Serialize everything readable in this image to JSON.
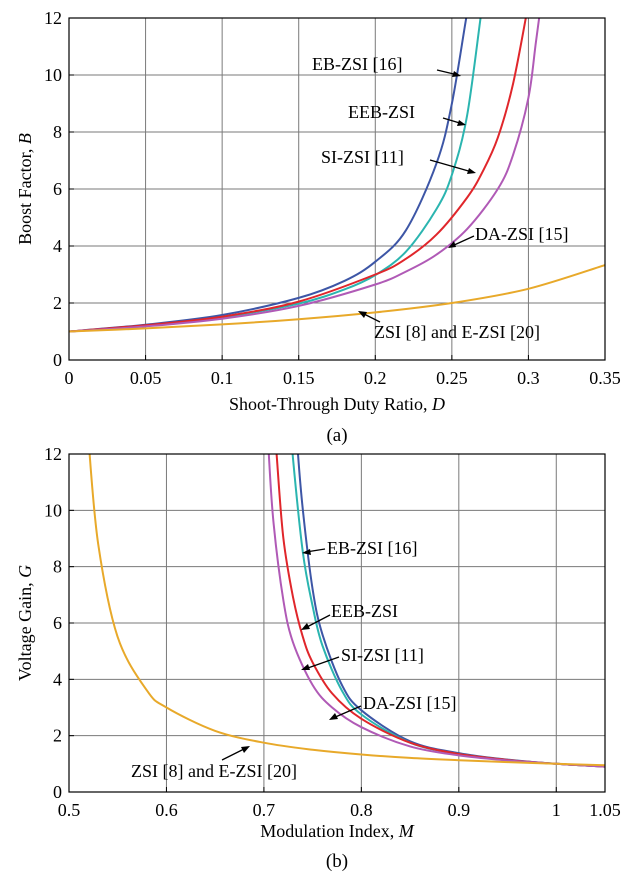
{
  "chart_data": [
    {
      "type": "line",
      "caption": "(a)",
      "xlabel": "Shoot-Through Duty Ratio, ",
      "xlabel_var": "D",
      "ylabel": "Boost Factor, ",
      "ylabel_var": "B",
      "xlim": [
        0,
        0.35
      ],
      "ylim": [
        0,
        12
      ],
      "xticks": [
        0,
        0.05,
        0.1,
        0.15,
        0.2,
        0.25,
        0.3,
        0.35
      ],
      "xtick_labels": [
        "0",
        "0.05",
        "0.1",
        "0.15",
        "0.2",
        "0.25",
        "0.3",
        "0.35"
      ],
      "yticks": [
        0,
        2,
        4,
        6,
        8,
        10,
        12
      ],
      "ytick_labels": [
        "0",
        "2",
        "4",
        "6",
        "8",
        "10",
        "12"
      ],
      "grid": true,
      "series": [
        {
          "name": "EB-ZSI [16]",
          "color": "#3d56a6",
          "x": [
            0,
            0.05,
            0.1,
            0.15,
            0.18,
            0.2,
            0.22,
            0.24,
            0.25,
            0.26,
            0.265
          ],
          "y": [
            1.0,
            1.24,
            1.58,
            2.18,
            2.78,
            3.45,
            4.55,
            6.9,
            9.0,
            12.2,
            13.6
          ]
        },
        {
          "name": "EEB-ZSI",
          "color": "#2bb5b0",
          "x": [
            0,
            0.05,
            0.1,
            0.15,
            0.18,
            0.2,
            0.22,
            0.24,
            0.25,
            0.26,
            0.27,
            0.275
          ],
          "y": [
            1.0,
            1.2,
            1.5,
            1.98,
            2.48,
            2.98,
            3.8,
            5.3,
            6.5,
            8.6,
            12.5,
            14.0
          ]
        },
        {
          "name": "SI-ZSI [11]",
          "color": "#e0262b",
          "x": [
            0,
            0.05,
            0.1,
            0.15,
            0.2,
            0.22,
            0.24,
            0.26,
            0.27,
            0.28,
            0.29,
            0.3,
            0.305
          ],
          "y": [
            1.0,
            1.22,
            1.52,
            2.05,
            3.0,
            3.55,
            4.4,
            5.7,
            6.6,
            7.8,
            9.7,
            12.5,
            14.0
          ]
        },
        {
          "name": "DA-ZSI [15]",
          "color": "#b05ab6",
          "x": [
            0,
            0.05,
            0.1,
            0.15,
            0.2,
            0.22,
            0.24,
            0.26,
            0.28,
            0.29,
            0.3,
            0.305,
            0.31
          ],
          "y": [
            1.0,
            1.18,
            1.45,
            1.9,
            2.65,
            3.1,
            3.7,
            4.6,
            6.0,
            7.2,
            9.2,
            11.2,
            13.2
          ]
        },
        {
          "name": "ZSI [8] and E-ZSI [20]",
          "color": "#e8a92a",
          "x": [
            0,
            0.05,
            0.1,
            0.15,
            0.2,
            0.25,
            0.3,
            0.35
          ],
          "y": [
            1.0,
            1.11,
            1.25,
            1.43,
            1.67,
            2.0,
            2.5,
            3.33
          ]
        }
      ]
    },
    {
      "type": "line",
      "caption": "(b)",
      "xlabel": "Modulation Index, ",
      "xlabel_var": "M",
      "ylabel": "Voltage Gain, ",
      "ylabel_var": "G",
      "xlim": [
        0.5,
        1.05
      ],
      "ylim": [
        0,
        12
      ],
      "xticks": [
        0.5,
        0.6,
        0.7,
        0.8,
        0.9,
        1,
        1.05
      ],
      "xtick_labels": [
        "0.5",
        "0.6",
        "0.7",
        "0.8",
        "0.9",
        "1",
        "1.05"
      ],
      "yticks": [
        0,
        2,
        4,
        6,
        8,
        10,
        12
      ],
      "ytick_labels": [
        "0",
        "2",
        "4",
        "6",
        "8",
        "10",
        "12"
      ],
      "grid": true,
      "series": [
        {
          "name": "EB-ZSI [16]",
          "color": "#3d56a6",
          "x": [
            0.733,
            0.735,
            0.74,
            0.75,
            0.76,
            0.78,
            0.8,
            0.85,
            0.9,
            0.95,
            1.0,
            1.05
          ],
          "y": [
            13.5,
            12.0,
            10.0,
            7.2,
            5.6,
            3.8,
            2.9,
            1.8,
            1.38,
            1.15,
            1.0,
            0.9
          ]
        },
        {
          "name": "EEB-ZSI",
          "color": "#2bb5b0",
          "x": [
            0.727,
            0.73,
            0.74,
            0.75,
            0.76,
            0.78,
            0.8,
            0.85,
            0.9,
            0.95,
            1.0,
            1.05
          ],
          "y": [
            13.5,
            11.8,
            8.5,
            6.6,
            5.2,
            3.6,
            2.75,
            1.75,
            1.35,
            1.14,
            1.0,
            0.9
          ]
        },
        {
          "name": "SI-ZSI [11]",
          "color": "#e0262b",
          "x": [
            0.71,
            0.713,
            0.72,
            0.73,
            0.74,
            0.75,
            0.77,
            0.8,
            0.85,
            0.9,
            0.95,
            1.0,
            1.05
          ],
          "y": [
            13.5,
            12.0,
            9.0,
            6.9,
            5.5,
            4.6,
            3.5,
            2.6,
            1.75,
            1.35,
            1.14,
            1.0,
            0.9
          ]
        },
        {
          "name": "DA-ZSI [15]",
          "color": "#b05ab6",
          "x": [
            0.703,
            0.705,
            0.71,
            0.72,
            0.73,
            0.75,
            0.77,
            0.8,
            0.85,
            0.9,
            0.95,
            1.0,
            1.05
          ],
          "y": [
            13.5,
            12.0,
            9.5,
            6.8,
            5.3,
            3.8,
            3.0,
            2.3,
            1.62,
            1.3,
            1.12,
            1.0,
            0.9
          ]
        },
        {
          "name": "ZSI [8] and E-ZSI [20]",
          "color": "#e8a92a",
          "x": [
            0.518,
            0.52,
            0.53,
            0.55,
            0.58,
            0.6,
            0.65,
            0.7,
            0.75,
            0.8,
            0.85,
            0.9,
            0.95,
            1.0,
            1.05
          ],
          "y": [
            13.5,
            12.5,
            8.8,
            5.5,
            3.6,
            3.0,
            2.17,
            1.75,
            1.5,
            1.33,
            1.21,
            1.13,
            1.06,
            1.0,
            0.95
          ]
        }
      ]
    }
  ]
}
